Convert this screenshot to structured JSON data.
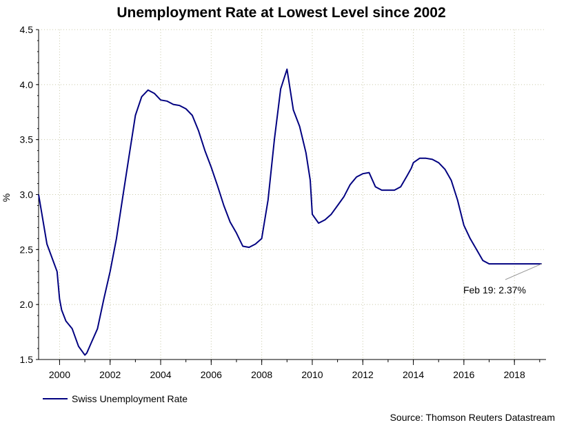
{
  "chart_data": {
    "type": "line",
    "title": "Unemployment Rate at Lowest Level since 2002",
    "ylabel": "%",
    "xlabel": "",
    "xlim": [
      1999.17,
      2019.25
    ],
    "ylim": [
      1.5,
      4.5
    ],
    "yticks": [
      1.5,
      2.0,
      2.5,
      3.0,
      3.5,
      4.0,
      4.5
    ],
    "ytick_labels": [
      "1.5",
      "2.0",
      "2.5",
      "3.0",
      "3.5",
      "4.0",
      "4.5"
    ],
    "xticks": [
      2000,
      2002,
      2004,
      2006,
      2008,
      2010,
      2012,
      2014,
      2016,
      2018
    ],
    "xtick_labels": [
      "2000",
      "2002",
      "2004",
      "2006",
      "2008",
      "2010",
      "2012",
      "2014",
      "2016",
      "2018"
    ],
    "grid": true,
    "legend_position": "bottom-left",
    "series": [
      {
        "name": "Swiss Unemployment Rate",
        "color": "#000080",
        "x": [
          1999.17,
          1999.5,
          1999.9,
          2000.0,
          2000.08,
          2000.25,
          2000.5,
          2000.75,
          2001.0,
          2001.08,
          2001.25,
          2001.5,
          2001.75,
          2002.0,
          2002.25,
          2002.5,
          2002.75,
          2003.0,
          2003.25,
          2003.5,
          2003.75,
          2004.0,
          2004.25,
          2004.5,
          2004.75,
          2005.0,
          2005.25,
          2005.5,
          2005.75,
          2006.0,
          2006.25,
          2006.5,
          2006.75,
          2007.0,
          2007.25,
          2007.5,
          2007.75,
          2008.0,
          2008.25,
          2008.5,
          2008.75,
          2009.0,
          2009.25,
          2009.5,
          2009.75,
          2009.92,
          2010.0,
          2010.25,
          2010.5,
          2010.75,
          2011.0,
          2011.25,
          2011.5,
          2011.75,
          2012.0,
          2012.25,
          2012.5,
          2012.75,
          2013.0,
          2013.25,
          2013.5,
          2013.75,
          2013.92,
          2014.0,
          2014.25,
          2014.5,
          2014.75,
          2015.0,
          2015.25,
          2015.5,
          2015.75,
          2016.0,
          2016.25,
          2016.5,
          2016.75,
          2017.0,
          2017.25,
          2017.5,
          2017.75,
          2018.0,
          2018.25,
          2018.5,
          2018.75,
          2019.0,
          2019.08
        ],
        "values": [
          3.0,
          2.55,
          2.3,
          2.05,
          1.95,
          1.85,
          1.78,
          1.62,
          1.54,
          1.56,
          1.65,
          1.78,
          2.05,
          2.3,
          2.6,
          2.98,
          3.35,
          3.72,
          3.89,
          3.95,
          3.92,
          3.86,
          3.85,
          3.82,
          3.81,
          3.78,
          3.72,
          3.58,
          3.4,
          3.25,
          3.08,
          2.9,
          2.75,
          2.65,
          2.53,
          2.52,
          2.55,
          2.6,
          2.95,
          3.5,
          3.96,
          4.14,
          3.77,
          3.62,
          3.38,
          3.13,
          2.82,
          2.74,
          2.77,
          2.82,
          2.9,
          2.98,
          3.09,
          3.16,
          3.19,
          3.2,
          3.07,
          3.04,
          3.04,
          3.04,
          3.07,
          3.17,
          3.24,
          3.29,
          3.33,
          3.33,
          3.32,
          3.29,
          3.23,
          3.13,
          2.95,
          2.72,
          2.6,
          2.5,
          2.4,
          2.37,
          2.37,
          2.37,
          2.37,
          2.37,
          2.37,
          2.37,
          2.37,
          2.37,
          2.37
        ]
      }
    ],
    "annotation": {
      "text": "Feb 19: 2.37%",
      "x": 2019.08,
      "y": 2.37
    },
    "source": "Source: Thomson Reuters Datastream"
  }
}
